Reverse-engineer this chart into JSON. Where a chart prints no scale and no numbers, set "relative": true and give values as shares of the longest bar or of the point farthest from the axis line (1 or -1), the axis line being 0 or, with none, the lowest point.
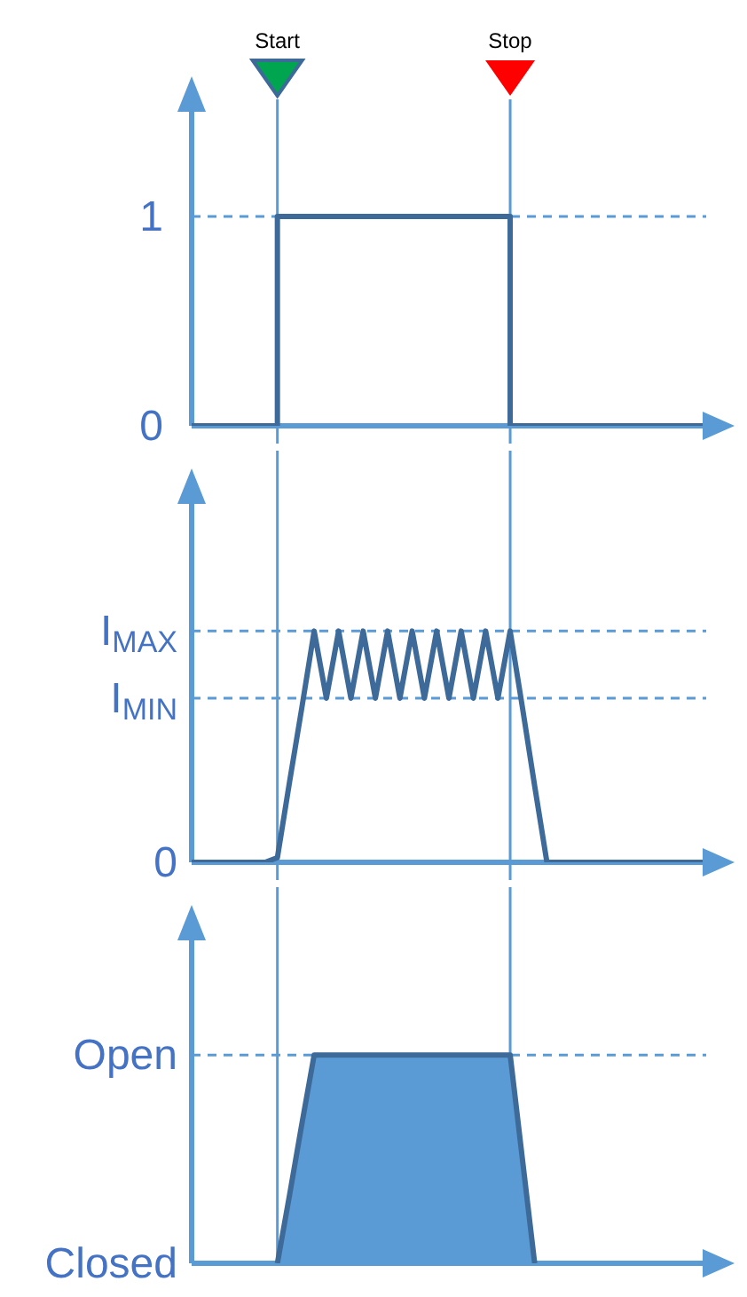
{
  "chart_data": [
    {
      "type": "step",
      "categories": [
        null,
        null,
        null,
        null,
        null,
        null,
        null,
        null,
        null,
        null,
        null,
        null,
        null,
        null,
        null,
        null,
        null,
        null,
        null,
        null,
        null,
        null,
        null,
        null,
        null,
        null,
        null,
        null,
        null,
        null,
        null,
        null,
        null,
        null,
        null,
        null,
        null,
        null,
        null,
        null,
        null,
        null,
        null
      ],
      "series": [
        {
          "color": "#3d6a99",
          "values": [
            0,
            0,
            0,
            0,
            0,
            0,
            0,
            1,
            1,
            1,
            1,
            1,
            1,
            1,
            1,
            1,
            1,
            1,
            1,
            1,
            1,
            1,
            1,
            1,
            1,
            1,
            0,
            0,
            0,
            0,
            0,
            0,
            0,
            0,
            0,
            0,
            0,
            0,
            0,
            0,
            0,
            0,
            0
          ]
        }
      ],
      "ylim": [
        0,
        1.5
      ],
      "yticks": [
        0,
        1
      ],
      "tick_labels": "y",
      "marker": "none",
      "line_style": "solid",
      "annotations": [
        "Start",
        "Stop"
      ],
      "ref_lines": [
        {
          "axis": "y",
          "value": 1,
          "color": "#5b9bd5",
          "line_style": "dashed"
        }
      ]
    },
    {
      "type": "line",
      "relative": true,
      "categories": [
        null,
        null,
        null,
        null,
        null,
        null,
        null,
        null,
        null,
        null,
        null,
        null,
        null,
        null,
        null,
        null,
        null,
        null,
        null,
        null,
        null,
        null,
        null,
        null,
        null,
        null,
        null,
        null,
        null,
        null,
        null,
        null,
        null,
        null,
        null,
        null,
        null,
        null,
        null,
        null,
        null,
        null,
        null
      ],
      "series": [
        {
          "color": "#3d6a99",
          "values": [
            0,
            0,
            0,
            0,
            0,
            0,
            0,
            0.02,
            0.35,
            0.67,
            1,
            0.71,
            1,
            0.71,
            1,
            0.71,
            1,
            0.71,
            1,
            0.71,
            1,
            0.71,
            1,
            0.71,
            1,
            0.71,
            1,
            0.67,
            0.33,
            0,
            0,
            0,
            0,
            0,
            0,
            0,
            0,
            0,
            0,
            0,
            0,
            0,
            0
          ]
        }
      ],
      "tick_labels": false,
      "marker": "none",
      "line_style": "solid",
      "ref_lines": [
        {
          "axis": "y",
          "value": 1,
          "label": "I$_{MAX}$",
          "color": "#5b9bd5",
          "line_style": "dashed"
        },
        {
          "axis": "y",
          "value": 0.71,
          "label": "I$_{MIN}$",
          "color": "#5b9bd5",
          "line_style": "dashed"
        }
      ],
      "annotations": [
        "0"
      ]
    },
    {
      "type": "area",
      "relative": true,
      "categories": [
        null,
        null,
        null,
        null,
        null,
        null,
        null,
        null,
        null,
        null,
        null,
        null,
        null,
        null,
        null,
        null,
        null,
        null,
        null,
        null,
        null,
        null,
        null,
        null,
        null,
        null,
        null,
        null,
        null,
        null,
        null,
        null,
        null,
        null,
        null,
        null,
        null,
        null,
        null,
        null,
        null,
        null,
        null
      ],
      "series": [
        {
          "color": "#5b9bd5",
          "values": [
            null,
            null,
            null,
            null,
            null,
            null,
            null,
            0,
            0.33,
            0.67,
            1,
            1,
            1,
            1,
            1,
            1,
            1,
            1,
            1,
            1,
            1,
            1,
            1,
            1,
            1,
            1,
            1,
            0.5,
            0,
            null,
            null,
            null,
            null,
            null,
            null,
            null,
            null,
            null,
            null,
            null,
            null,
            null,
            null
          ]
        }
      ],
      "tick_labels": false,
      "marker": "none",
      "line_style": "solid",
      "ref_lines": [
        {
          "axis": "y",
          "value": 1,
          "label": "Open",
          "color": "#5b9bd5",
          "line_style": "dashed"
        }
      ],
      "annotations": [
        "Closed"
      ]
    }
  ]
}
